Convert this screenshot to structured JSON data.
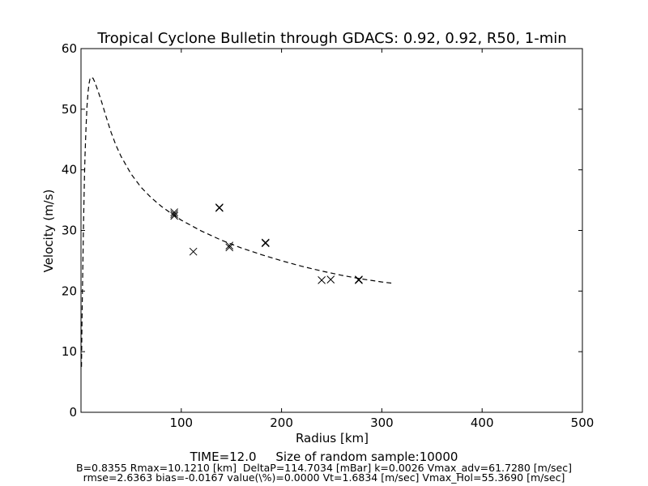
{
  "chart_data": {
    "type": "scatter",
    "title": "Tropical Cyclone Bulletin through GDACS: 0.92, 0.92, R50, 1-min",
    "xlabel": "Radius [km]",
    "ylabel": "Velocity (m/s)",
    "xlim": [
      0,
      500
    ],
    "ylim": [
      0,
      60
    ],
    "xticks": [
      "100",
      "200",
      "300",
      "400",
      "500"
    ],
    "yticks": [
      "0",
      "10",
      "20",
      "30",
      "40",
      "50",
      "60"
    ],
    "grid": false,
    "legend": "none",
    "series": [
      {
        "kind": "scatter",
        "marker": "x",
        "color": "#000000",
        "points": [
          [
            93,
            33.0
          ],
          [
            93,
            32.4
          ],
          [
            93,
            32.7
          ],
          [
            112,
            26.5
          ],
          [
            138,
            33.7
          ],
          [
            138,
            33.8
          ],
          [
            148,
            27.2
          ],
          [
            148,
            27.5
          ],
          [
            184,
            28.0
          ],
          [
            184,
            27.9
          ],
          [
            240,
            21.8
          ],
          [
            249,
            21.9
          ],
          [
            277,
            21.9
          ],
          [
            277,
            21.8
          ]
        ]
      },
      {
        "kind": "line",
        "style": "dashed",
        "color": "#000000",
        "points": [
          [
            0.5,
            7.5
          ],
          [
            1,
            15
          ],
          [
            1.5,
            21
          ],
          [
            2,
            26
          ],
          [
            2.5,
            31
          ],
          [
            3,
            35
          ],
          [
            3.5,
            39
          ],
          [
            4,
            42.5
          ],
          [
            5,
            47
          ],
          [
            6,
            50.5
          ],
          [
            7,
            52.8
          ],
          [
            8,
            54.2
          ],
          [
            9,
            55
          ],
          [
            10,
            55.3
          ],
          [
            12,
            55.1
          ],
          [
            14,
            54.4
          ],
          [
            17,
            53
          ],
          [
            20,
            51.5
          ],
          [
            25,
            48.8
          ],
          [
            30,
            46.2
          ],
          [
            35,
            44
          ],
          [
            40,
            42.2
          ],
          [
            50,
            39.3
          ],
          [
            60,
            37.1
          ],
          [
            70,
            35.4
          ],
          [
            80,
            34.0
          ],
          [
            90,
            32.8
          ],
          [
            100,
            31.7
          ],
          [
            120,
            29.9
          ],
          [
            140,
            28.4
          ],
          [
            160,
            27.1
          ],
          [
            180,
            26.0
          ],
          [
            200,
            25.0
          ],
          [
            220,
            24.1
          ],
          [
            240,
            23.3
          ],
          [
            260,
            22.6
          ],
          [
            280,
            22.0
          ],
          [
            300,
            21.5
          ],
          [
            310,
            21.3
          ]
        ]
      }
    ]
  },
  "footer": {
    "line1": "TIME=12.0     Size of random sample:10000",
    "line2": "B=0.8355 Rmax=10.1210 [km]  DeltaP=114.7034 [mBar] k=0.0026 Vmax_adv=61.7280 [m/sec]",
    "line3": "rmse=2.6363 bias=-0.0167 value(\\%)=0.0000 Vt=1.6834 [m/sec] Vmax_Hol=55.3690 [m/sec]"
  }
}
